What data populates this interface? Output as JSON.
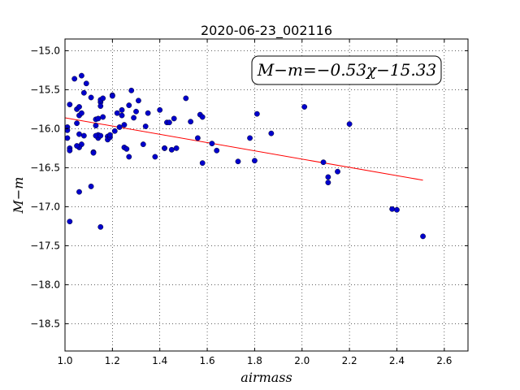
{
  "chart_data": {
    "type": "scatter",
    "title": "2020-06-23_002116",
    "xlabel": "airmass",
    "ylabel": "M−m",
    "xlim": [
      1.0,
      2.7
    ],
    "ylim": [
      -18.85,
      -14.85
    ],
    "x_ticks": [
      "1.0",
      "1.2",
      "1.4",
      "1.6",
      "1.8",
      "2.0",
      "2.2",
      "2.4",
      "2.6"
    ],
    "y_ticks": [
      "−15.0",
      "−15.5",
      "−16.0",
      "−16.5",
      "−17.0",
      "−17.5",
      "−18.0",
      "−18.5"
    ],
    "grid": true,
    "annotation": "M−m=−0.53χ−15.33",
    "colors": {
      "points": "#0000cc",
      "fit_line": "#ff0000"
    },
    "series": [
      {
        "type": "scatter",
        "x": [
          1.01,
          1.02,
          1.02,
          1.01,
          1.02,
          1.01,
          1.04,
          1.05,
          1.06,
          1.07,
          1.08,
          1.09,
          1.05,
          1.06,
          1.07,
          1.07,
          1.06,
          1.05,
          1.06,
          1.08,
          1.11,
          1.13,
          1.12,
          1.13,
          1.14,
          1.14,
          1.15,
          1.15,
          1.16,
          1.15,
          1.14,
          1.13,
          1.12,
          1.15,
          1.16,
          1.18,
          1.18,
          1.19,
          1.19,
          1.2,
          1.22,
          1.2,
          1.21,
          1.23,
          1.24,
          1.25,
          1.26,
          1.27,
          1.28,
          1.29,
          1.27,
          1.25,
          1.24,
          1.31,
          1.3,
          1.34,
          1.35,
          1.33,
          1.38,
          1.4,
          1.42,
          1.43,
          1.44,
          1.46,
          1.42,
          1.45,
          1.47,
          1.51,
          1.53,
          1.57,
          1.58,
          1.56,
          1.58,
          1.62,
          1.64,
          1.73,
          1.78,
          1.8,
          1.81,
          1.87,
          2.01,
          2.09,
          2.11,
          2.11,
          2.15,
          2.2,
          2.38,
          2.4,
          2.51,
          1.02,
          1.06,
          1.11,
          1.15
        ],
        "y": [
          -15.98,
          -15.69,
          -16.25,
          -16.12,
          -16.28,
          -16.02,
          -15.36,
          -15.75,
          -15.72,
          -15.32,
          -15.54,
          -15.42,
          -15.93,
          -15.83,
          -15.8,
          -16.2,
          -16.24,
          -16.22,
          -16.07,
          -16.09,
          -15.6,
          -15.88,
          -16.3,
          -15.96,
          -15.87,
          -16.08,
          -15.66,
          -15.71,
          -15.85,
          -15.63,
          -16.12,
          -16.09,
          -16.31,
          -16.09,
          -15.61,
          -16.1,
          -16.14,
          -16.11,
          -16.08,
          -15.57,
          -15.8,
          -15.58,
          -16.03,
          -15.98,
          -15.83,
          -16.24,
          -16.26,
          -15.7,
          -15.51,
          -15.86,
          -16.36,
          -15.95,
          -15.76,
          -15.64,
          -15.78,
          -15.97,
          -15.8,
          -16.2,
          -16.36,
          -15.76,
          -16.25,
          -15.92,
          -15.92,
          -15.87,
          -16.25,
          -16.27,
          -16.25,
          -15.61,
          -15.91,
          -15.82,
          -15.85,
          -16.12,
          -16.44,
          -16.19,
          -16.28,
          -16.42,
          -16.12,
          -16.41,
          -15.81,
          -16.06,
          -15.72,
          -16.43,
          -16.62,
          -16.69,
          -16.55,
          -15.94,
          -17.03,
          -17.04,
          -17.38,
          -17.19,
          -16.81,
          -16.74,
          -17.26
        ]
      },
      {
        "type": "line",
        "name": "fit",
        "x": [
          1.0,
          2.51
        ],
        "y": [
          -15.86,
          -16.66
        ]
      }
    ]
  }
}
